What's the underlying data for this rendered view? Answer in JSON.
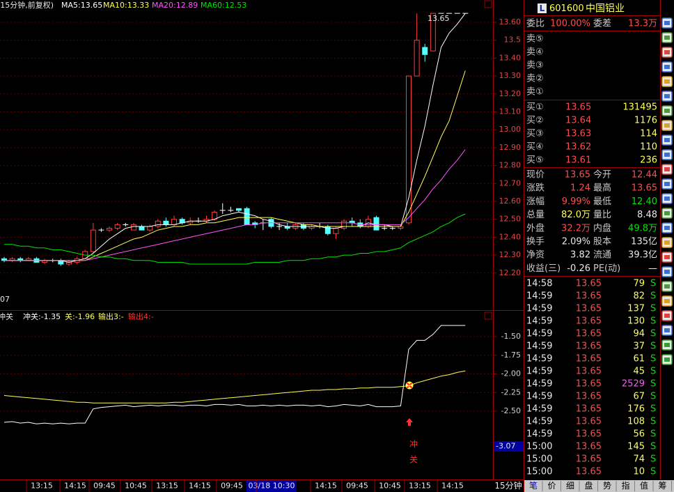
{
  "chart_data": [
    {
      "type": "candlestick",
      "legend_prefix": "(15分钟,前复权)",
      "max_label": "13.65",
      "min_label": "07",
      "open": [
        12.28,
        12.27,
        12.28,
        12.27,
        12.28,
        12.26,
        12.27,
        12.27,
        12.25,
        12.26,
        12.28,
        12.32,
        12.44,
        12.44,
        12.45,
        12.47,
        12.44,
        12.46,
        12.44,
        12.46,
        12.49,
        12.47,
        12.5,
        12.48,
        12.49,
        12.49,
        12.5,
        12.55,
        12.55,
        12.56,
        12.56,
        12.48,
        12.48,
        12.5,
        12.46,
        12.46,
        12.45,
        12.47,
        12.45,
        12.46,
        12.46,
        12.42,
        12.45,
        12.49,
        12.48,
        12.46,
        12.51,
        12.45,
        12.45,
        12.45,
        12.48,
        13.3,
        13.46,
        13.44,
        13.65,
        13.65,
        13.65,
        13.65
      ],
      "close": [
        12.27,
        12.28,
        12.27,
        12.28,
        12.26,
        12.27,
        12.27,
        12.25,
        12.26,
        12.28,
        12.32,
        12.44,
        12.44,
        12.45,
        12.47,
        12.47,
        12.47,
        12.44,
        12.46,
        12.49,
        12.47,
        12.5,
        12.48,
        12.49,
        12.49,
        12.5,
        12.54,
        12.55,
        12.55,
        12.55,
        12.47,
        12.47,
        12.48,
        12.46,
        12.46,
        12.45,
        12.47,
        12.45,
        12.46,
        12.46,
        12.42,
        12.45,
        12.49,
        12.48,
        12.46,
        12.5,
        12.44,
        12.45,
        12.45,
        12.46,
        13.3,
        13.5,
        13.42,
        13.65,
        13.65,
        13.65,
        13.65,
        13.65
      ],
      "high": [
        12.29,
        12.29,
        12.29,
        12.29,
        12.29,
        12.28,
        12.28,
        12.28,
        12.27,
        12.29,
        12.33,
        12.48,
        12.45,
        12.46,
        12.48,
        12.48,
        12.48,
        12.47,
        12.47,
        12.5,
        12.51,
        12.52,
        12.51,
        12.51,
        12.51,
        12.52,
        12.55,
        12.59,
        12.57,
        12.56,
        12.57,
        12.49,
        12.5,
        12.51,
        12.48,
        12.48,
        12.48,
        12.48,
        12.47,
        12.48,
        12.47,
        12.46,
        12.5,
        12.51,
        12.5,
        12.52,
        12.52,
        12.47,
        12.46,
        12.47,
        13.3,
        13.65,
        13.48,
        13.65,
        13.65,
        13.65,
        13.65,
        13.65
      ],
      "low": [
        12.26,
        12.26,
        12.26,
        12.27,
        12.26,
        12.25,
        12.26,
        12.24,
        12.24,
        12.25,
        12.28,
        12.31,
        12.43,
        12.43,
        12.44,
        12.46,
        12.44,
        12.44,
        12.43,
        12.45,
        12.46,
        12.46,
        12.47,
        12.47,
        12.48,
        12.48,
        12.49,
        12.53,
        12.54,
        12.54,
        12.47,
        12.45,
        12.44,
        12.45,
        12.44,
        12.44,
        12.44,
        12.44,
        12.44,
        12.45,
        12.41,
        12.39,
        12.44,
        12.46,
        12.45,
        12.45,
        12.44,
        12.44,
        12.44,
        12.44,
        12.47,
        13.3,
        13.38,
        13.44,
        13.65,
        13.65,
        13.65,
        13.65
      ],
      "series": [
        {
          "name": "MA5:13.65",
          "color": "#ffffff",
          "values": [
            12.27,
            12.27,
            12.27,
            12.27,
            12.27,
            12.27,
            12.27,
            12.27,
            12.26,
            12.27,
            12.28,
            12.31,
            12.35,
            12.39,
            12.42,
            12.45,
            12.46,
            12.46,
            12.46,
            12.47,
            12.47,
            12.47,
            12.48,
            12.49,
            12.49,
            12.49,
            12.5,
            12.52,
            12.53,
            12.54,
            12.53,
            12.52,
            12.5,
            12.49,
            12.47,
            12.46,
            12.46,
            12.46,
            12.46,
            12.46,
            12.45,
            12.45,
            12.46,
            12.46,
            12.46,
            12.48,
            12.47,
            12.47,
            12.46,
            12.46,
            12.62,
            12.83,
            13.02,
            13.25,
            13.46,
            13.54,
            13.59,
            13.65
          ]
        },
        {
          "name": "MA10:13.33",
          "color": "#ffff54",
          "values": [
            12.27,
            12.27,
            12.27,
            12.27,
            12.27,
            12.27,
            12.27,
            12.27,
            12.27,
            12.27,
            12.27,
            12.29,
            12.31,
            12.33,
            12.35,
            12.37,
            12.39,
            12.4,
            12.42,
            12.44,
            12.45,
            12.46,
            12.46,
            12.47,
            12.47,
            12.48,
            12.48,
            12.49,
            12.5,
            12.51,
            12.51,
            12.51,
            12.51,
            12.51,
            12.5,
            12.49,
            12.48,
            12.47,
            12.47,
            12.46,
            12.46,
            12.46,
            12.46,
            12.46,
            12.46,
            12.46,
            12.46,
            12.46,
            12.46,
            12.46,
            12.54,
            12.64,
            12.74,
            12.85,
            12.96,
            13.05,
            13.19,
            13.33
          ]
        },
        {
          "name": "MA20:12.89",
          "color": "#ff54ff",
          "values": [
            12.27,
            12.27,
            12.27,
            12.27,
            12.27,
            12.27,
            12.27,
            12.27,
            12.27,
            12.27,
            12.27,
            12.28,
            12.29,
            12.3,
            12.31,
            12.32,
            12.33,
            12.34,
            12.35,
            12.36,
            12.37,
            12.38,
            12.39,
            12.4,
            12.41,
            12.42,
            12.43,
            12.44,
            12.45,
            12.46,
            12.47,
            12.47,
            12.48,
            12.48,
            12.48,
            12.48,
            12.48,
            12.48,
            12.48,
            12.48,
            12.48,
            12.48,
            12.48,
            12.48,
            12.47,
            12.47,
            12.47,
            12.47,
            12.47,
            12.47,
            12.51,
            12.56,
            12.61,
            12.67,
            12.72,
            12.78,
            12.83,
            12.89
          ]
        },
        {
          "name": "MA60:12.53",
          "color": "#00e600",
          "values": [
            12.36,
            12.36,
            12.35,
            12.35,
            12.34,
            12.34,
            12.33,
            12.33,
            12.32,
            12.31,
            12.3,
            12.3,
            12.29,
            12.29,
            12.28,
            12.28,
            12.27,
            12.27,
            12.27,
            12.26,
            12.26,
            12.26,
            12.26,
            12.25,
            12.25,
            12.25,
            12.25,
            12.25,
            12.25,
            12.25,
            12.25,
            12.26,
            12.26,
            12.26,
            12.26,
            12.27,
            12.27,
            12.27,
            12.28,
            12.28,
            12.29,
            12.29,
            12.3,
            12.3,
            12.31,
            12.31,
            12.32,
            12.32,
            12.33,
            12.34,
            12.37,
            12.39,
            12.41,
            12.43,
            12.46,
            12.48,
            12.51,
            12.53
          ]
        }
      ],
      "ylim": [
        12.0,
        13.72
      ],
      "yticks": [
        {
          "value": 13.6,
          "label": "13.60"
        },
        13.5,
        {
          "value": 13.4,
          "label": "13.40"
        },
        {
          "value": 13.3,
          "label": "13.30"
        },
        {
          "value": 13.2,
          "label": "13.20"
        },
        {
          "value": 13.1,
          "label": "13.10"
        },
        {
          "value": 13.0,
          "label": "13.00"
        },
        {
          "value": 12.9,
          "label": "12.90"
        },
        {
          "value": 12.8,
          "label": "12.80"
        },
        {
          "value": 12.7,
          "label": "12.70"
        },
        {
          "value": 12.6,
          "label": "12.60"
        },
        {
          "value": 12.5,
          "label": "12.50"
        },
        {
          "value": 12.4,
          "label": "12.40"
        },
        {
          "value": 12.3,
          "label": "12.30"
        },
        {
          "value": 12.2,
          "label": "12.20"
        }
      ],
      "x_labels": [
        "13:15",
        "14:15",
        "09:45",
        "10:45",
        "13:15",
        "14:15",
        "09:45",
        "03/18 10:30",
        "14:15",
        "09:45",
        "10:45",
        "13:15",
        "14:15"
      ],
      "grid": true
    },
    {
      "type": "line",
      "title": "冲关",
      "extra_legend": [
        "输出3:-",
        "输出4:-"
      ],
      "cursor_label": "-3.07",
      "signal_texts": [
        "冲",
        "关"
      ],
      "series": [
        {
          "name": "冲关:-1.35",
          "color": "#ffffff",
          "values": [
            -2.65,
            -2.64,
            -2.66,
            -2.65,
            -2.67,
            -2.66,
            -2.67,
            -2.66,
            -2.67,
            -2.66,
            -2.66,
            -2.47,
            -2.45,
            -2.44,
            -2.43,
            -2.42,
            -2.44,
            -2.43,
            -2.42,
            -2.43,
            -2.42,
            -2.42,
            -2.43,
            -2.42,
            -2.42,
            -2.43,
            -2.41,
            -2.41,
            -2.42,
            -2.41,
            -2.43,
            -2.43,
            -2.42,
            -2.43,
            -2.42,
            -2.43,
            -2.42,
            -2.42,
            -2.43,
            -2.42,
            -2.44,
            -2.43,
            -2.41,
            -2.42,
            -2.43,
            -2.41,
            -2.44,
            -2.44,
            -2.44,
            -2.43,
            -1.67,
            -1.55,
            -1.55,
            -1.47,
            -1.35,
            -1.35,
            -1.35,
            -1.35
          ]
        },
        {
          "name": "关:-1.96",
          "color": "#ffff54",
          "values": [
            -2.29,
            -2.3,
            -2.31,
            -2.32,
            -2.33,
            -2.34,
            -2.35,
            -2.36,
            -2.37,
            -2.38,
            -2.38,
            -2.39,
            -2.39,
            -2.39,
            -2.39,
            -2.39,
            -2.39,
            -2.39,
            -2.39,
            -2.39,
            -2.39,
            -2.38,
            -2.38,
            -2.37,
            -2.36,
            -2.35,
            -2.34,
            -2.33,
            -2.32,
            -2.31,
            -2.3,
            -2.29,
            -2.28,
            -2.27,
            -2.26,
            -2.25,
            -2.24,
            -2.23,
            -2.22,
            -2.22,
            -2.21,
            -2.21,
            -2.2,
            -2.2,
            -2.19,
            -2.19,
            -2.18,
            -2.18,
            -2.18,
            -2.17,
            -2.16,
            -2.12,
            -2.09,
            -2.06,
            -2.03,
            -2.01,
            -1.98,
            -1.96
          ]
        }
      ],
      "ylim": [
        -3.4,
        -1.15
      ],
      "yticks": [
        {
          "value": -1.5,
          "label": "-1.50"
        },
        -1.75,
        {
          "value": -2.0,
          "label": "-2.00"
        },
        -2.25,
        {
          "value": -2.5,
          "label": "-2.50"
        }
      ]
    }
  ],
  "quote": {
    "badge": "L",
    "code": "601600",
    "name": "中国铝业",
    "ratio": [
      "委比",
      "100.00%",
      "委差",
      "13.3万"
    ],
    "sell": [
      "卖⑤",
      "卖④",
      "卖③",
      "卖②",
      "卖①"
    ],
    "buy": [
      [
        "买①",
        "13.65",
        "131495"
      ],
      [
        "买②",
        "13.64",
        "1176"
      ],
      [
        "买③",
        "13.63",
        "114"
      ],
      [
        "买④",
        "13.62",
        "110"
      ],
      [
        "买⑤",
        "13.61",
        "236"
      ]
    ],
    "stats": [
      [
        "现价",
        "13.65",
        "今开",
        "12.44"
      ],
      [
        "涨跌",
        "1.24",
        "最高",
        "13.65"
      ],
      [
        "涨幅",
        "9.99%",
        "最低",
        "12.40"
      ],
      [
        "总量",
        "82.0万",
        "量比",
        "8.48"
      ],
      [
        "外盘",
        "32.2万",
        "内盘",
        "49.8万"
      ],
      [
        "换手",
        "2.09%",
        "股本",
        "135亿"
      ],
      [
        "净资",
        "3.82",
        "流通",
        "39.3亿"
      ],
      [
        "收益(三)",
        "-0.26",
        "PE(动)",
        "—"
      ]
    ],
    "trades": [
      [
        "14:58",
        "13.65",
        "79",
        "S"
      ],
      [
        "14:59",
        "13.65",
        "82",
        "S"
      ],
      [
        "14:59",
        "13.65",
        "137",
        "S"
      ],
      [
        "14:59",
        "13.65",
        "130",
        "S"
      ],
      [
        "14:59",
        "13.65",
        "94",
        "S"
      ],
      [
        "14:59",
        "13.65",
        "37",
        "S"
      ],
      [
        "14:59",
        "13.65",
        "61",
        "S"
      ],
      [
        "14:59",
        "13.65",
        "45",
        "S"
      ],
      [
        "14:59",
        "13.65",
        "2529",
        "S"
      ],
      [
        "14:59",
        "13.65",
        "67",
        "S"
      ],
      [
        "14:59",
        "13.65",
        "176",
        "S"
      ],
      [
        "14:59",
        "13.65",
        "108",
        "S"
      ],
      [
        "14:59",
        "13.65",
        "56",
        "S"
      ],
      [
        "15:00",
        "13.65",
        "145",
        "S"
      ],
      [
        "15:00",
        "13.65",
        "74",
        "S"
      ],
      [
        "15:00",
        "13.65",
        "10",
        "S"
      ]
    ]
  },
  "period_tab": "15分钟",
  "tabs": [
    "笔",
    "价",
    "细",
    "盘",
    "势",
    "指",
    "值",
    "筹"
  ]
}
